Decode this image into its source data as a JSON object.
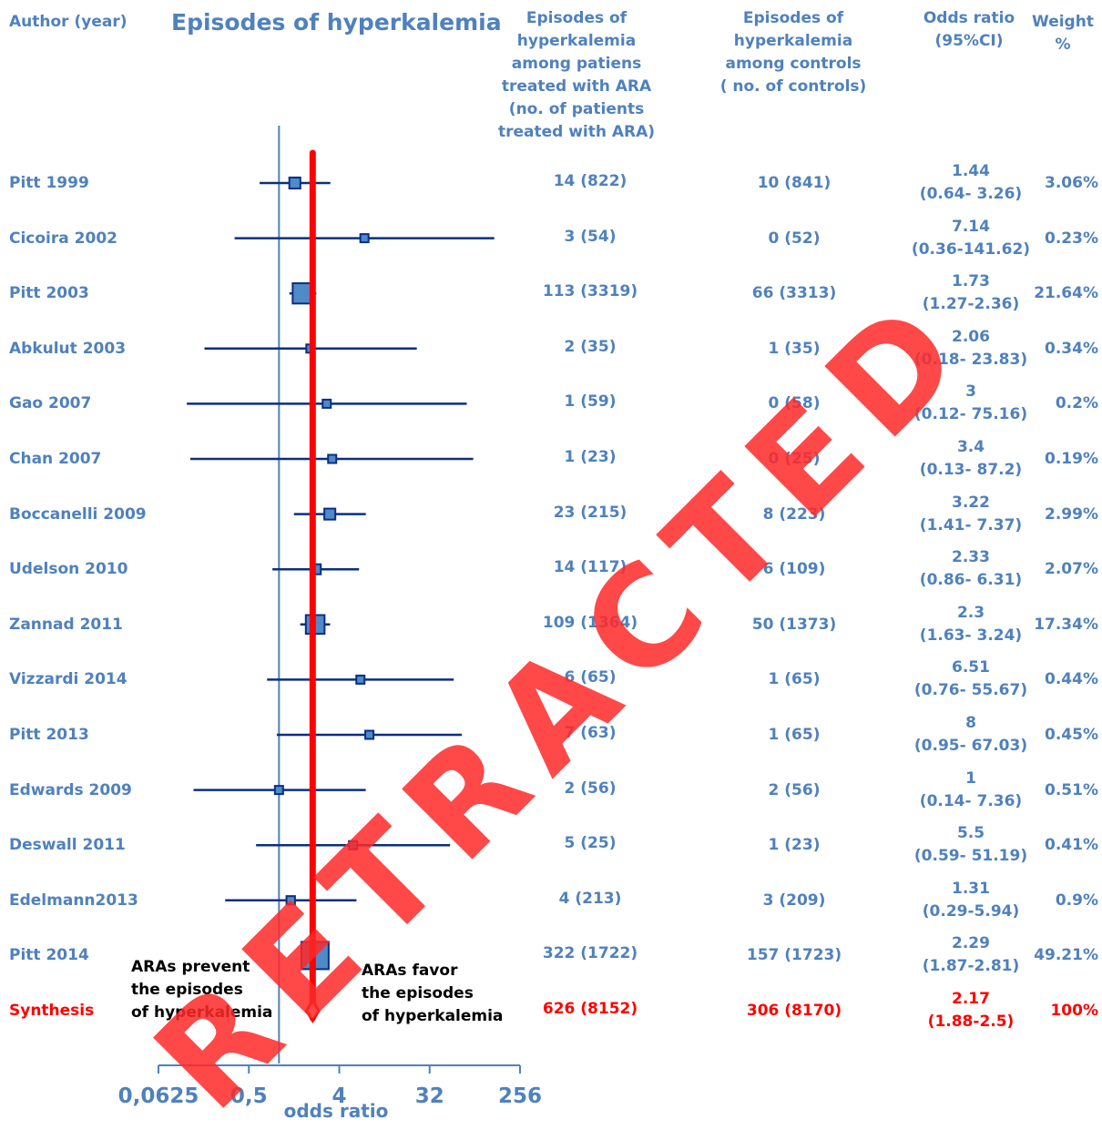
{
  "header": {
    "author": "Author (year)",
    "title": "Episodes of hyperkalemia",
    "ara_col": "Episodes of hyperkalemia\namong patiens\ntreated with  ARA\n(no. of patients\ntreated with ARA)",
    "ctrl_col": "Episodes of hyperkalemia\namong controls\n( no. of controls)",
    "or_col": "Odds ratio\n(95%CI)",
    "weight_col": "Weight %"
  },
  "notes": {
    "prevent": "ARAs prevent\nthe episodes\nof hyperkalemia",
    "favor": "ARAs  favor\nthe episodes\nof hyperkalemia"
  },
  "watermark": "RETRACTED",
  "chart_data": {
    "type": "forest",
    "x_scale": "log2",
    "xlim": [
      0.0625,
      256
    ],
    "xticks": [
      0.0625,
      0.5,
      4,
      32,
      256
    ],
    "xtick_labels": [
      "0,0625",
      "0,5",
      "4",
      "32",
      "256"
    ],
    "xlabel": "odds ratio",
    "null_line": 1,
    "pooled_line": 2.17,
    "studies": [
      {
        "name": "Pitt 1999",
        "ara": "14 (822)",
        "ctrl": "10 (841)",
        "or": "1.44",
        "ci": "(0.64- 3.26)",
        "weight": "3.06%",
        "or_val": 1.44,
        "lo": 0.64,
        "hi": 3.26,
        "w": 3.06
      },
      {
        "name": "Cicoira 2002",
        "ara": "3 (54)",
        "ctrl": "0 (52)",
        "or": "7.14",
        "ci": "(0.36-141.62)",
        "weight": "0.23%",
        "or_val": 7.14,
        "lo": 0.36,
        "hi": 141.62,
        "w": 0.23
      },
      {
        "name": "Pitt 2003",
        "ara": "113 (3319)",
        "ctrl": "66 (3313)",
        "or": "1.73",
        "ci": "(1.27-2.36)",
        "weight": "21.64%",
        "or_val": 1.73,
        "lo": 1.27,
        "hi": 2.36,
        "w": 21.64
      },
      {
        "name": "Abkulut 2003",
        "ara": "2 (35)",
        "ctrl": "1 (35)",
        "or": "2.06",
        "ci": "(0.18- 23.83)",
        "weight": "0.34%",
        "or_val": 2.06,
        "lo": 0.18,
        "hi": 23.83,
        "w": 0.34
      },
      {
        "name": "Gao 2007",
        "ara": "1 (59)",
        "ctrl": "0 (58)",
        "or": "3",
        "ci": "(0.12- 75.16)",
        "weight": "0.2%",
        "or_val": 3,
        "lo": 0.12,
        "hi": 75.16,
        "w": 0.2
      },
      {
        "name": "Chan 2007",
        "ara": "1 (23)",
        "ctrl": "0 (25)",
        "or": "3.4",
        "ci": "(0.13- 87.2)",
        "weight": "0.19%",
        "or_val": 3.4,
        "lo": 0.13,
        "hi": 87.2,
        "w": 0.19
      },
      {
        "name": "Boccanelli 2009",
        "ara": "23 (215)",
        "ctrl": "8 (223)",
        "or": "3.22",
        "ci": "(1.41- 7.37)",
        "weight": "2.99%",
        "or_val": 3.22,
        "lo": 1.41,
        "hi": 7.37,
        "w": 2.99
      },
      {
        "name": "Udelson 2010",
        "ara": "14 (117)",
        "ctrl": "6 (109)",
        "or": "2.33",
        "ci": "(0.86- 6.31)",
        "weight": "2.07%",
        "or_val": 2.33,
        "lo": 0.86,
        "hi": 6.31,
        "w": 2.07
      },
      {
        "name": "Zannad 2011",
        "ara": "109 (1364)",
        "ctrl": "50 (1373)",
        "or": "2.3",
        "ci": "(1.63- 3.24)",
        "weight": "17.34%",
        "or_val": 2.3,
        "lo": 1.63,
        "hi": 3.24,
        "w": 17.34
      },
      {
        "name": "Vizzardi 2014",
        "ara": "6 (65)",
        "ctrl": "1 (65)",
        "or": "6.51",
        "ci": "(0.76- 55.67)",
        "weight": "0.44%",
        "or_val": 6.51,
        "lo": 0.76,
        "hi": 55.67,
        "w": 0.44
      },
      {
        "name": "Pitt 2013",
        "ara": "7 (63)",
        "ctrl": "1 (65)",
        "or": "8",
        "ci": "(0.95- 67.03)",
        "weight": "0.45%",
        "or_val": 8,
        "lo": 0.95,
        "hi": 67.03,
        "w": 0.45
      },
      {
        "name": "Edwards 2009",
        "ara": "2 (56)",
        "ctrl": "2 (56)",
        "or": "1",
        "ci": "(0.14- 7.36)",
        "weight": "0.51%",
        "or_val": 1,
        "lo": 0.14,
        "hi": 7.36,
        "w": 0.51
      },
      {
        "name": "Deswall 2011",
        "ara": "5 (25)",
        "ctrl": "1 (23)",
        "or": "5.5",
        "ci": "(0.59- 51.19)",
        "weight": "0.41%",
        "or_val": 5.5,
        "lo": 0.59,
        "hi": 51.19,
        "w": 0.41
      },
      {
        "name": "Edelmann2013",
        "ara": "4 (213)",
        "ctrl": "3 (209)",
        "or": "1.31",
        "ci": "(0.29-5.94)",
        "weight": "0.9%",
        "or_val": 1.31,
        "lo": 0.29,
        "hi": 5.94,
        "w": 0.9
      },
      {
        "name": "Pitt 2014",
        "ara": "322 (1722)",
        "ctrl": "157 (1723)",
        "or": "2.29",
        "ci": "(1.87-2.81)",
        "weight": "49.21%",
        "or_val": 2.29,
        "lo": 1.87,
        "hi": 2.81,
        "w": 49.21
      }
    ],
    "synthesis": {
      "name": "Synthesis",
      "ara": "626 (8152)",
      "ctrl": "306 (8170)",
      "or": "2.17",
      "ci": "(1.88-2.5)",
      "weight": "100%",
      "or_val": 2.17,
      "lo": 1.88,
      "hi": 2.5
    }
  }
}
